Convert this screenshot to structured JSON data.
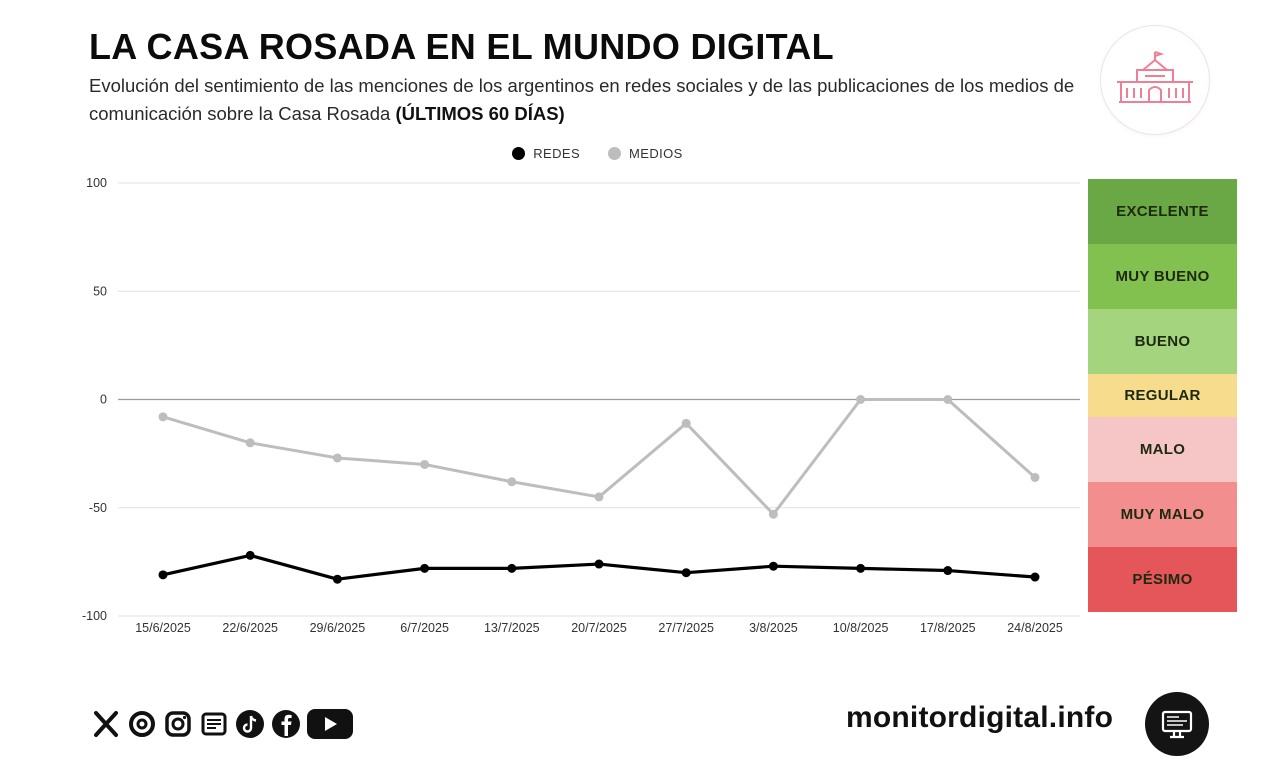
{
  "header": {
    "title": "LA CASA ROSADA EN EL MUNDO DIGITAL",
    "subtitle": "Evolución del sentimiento de las menciones de los argentinos en redes sociales y de las publicaciones de los medios de comunicación sobre la Casa Rosada",
    "subtitle_bold": "(ÚLTIMOS 60 DÍAS)"
  },
  "logo": {
    "icon": "casa-rosada-building-icon",
    "color": "#ef7f95"
  },
  "chart_data": {
    "type": "line",
    "title": "",
    "xlabel": "",
    "ylabel": "",
    "x": [
      "15/6/2025",
      "22/6/2025",
      "29/6/2025",
      "6/7/2025",
      "13/7/2025",
      "20/7/2025",
      "27/7/2025",
      "3/8/2025",
      "10/8/2025",
      "17/8/2025",
      "24/8/2025"
    ],
    "series": [
      {
        "name": "REDES",
        "color": "#000000",
        "values": [
          -81,
          -72,
          -83,
          -78,
          -78,
          -76,
          -80,
          -77,
          -78,
          -79,
          -82
        ]
      },
      {
        "name": "MEDIOS",
        "color": "#bdbdbd",
        "values": [
          -8,
          -20,
          -27,
          -30,
          -38,
          -45,
          -11,
          -53,
          0,
          0,
          -36
        ]
      }
    ],
    "yticks": [
      100,
      50,
      0,
      -50,
      -100
    ],
    "ylim": [
      -100,
      100
    ],
    "grid": true,
    "legend_position": "top-center"
  },
  "scale": {
    "bands": [
      {
        "label": "EXCELENTE",
        "color": "#6aa845",
        "from": 70,
        "to": 100
      },
      {
        "label": "MUY BUENO",
        "color": "#82c04f",
        "from": 40,
        "to": 70
      },
      {
        "label": "BUENO",
        "color": "#a5d47f",
        "from": 10,
        "to": 40
      },
      {
        "label": "REGULAR",
        "color": "#f6dc8c",
        "from": -10,
        "to": 10
      },
      {
        "label": "MALO",
        "color": "#f6c5c6",
        "from": -40,
        "to": -10
      },
      {
        "label": "MUY MALO",
        "color": "#f28e8e",
        "from": -70,
        "to": -40
      },
      {
        "label": "PÉSIMO",
        "color": "#e5565b",
        "from": -100,
        "to": -70
      }
    ]
  },
  "footer": {
    "social_icons": [
      "x-icon",
      "threads-icon",
      "instagram-icon",
      "newspaper-icon",
      "tiktok-icon",
      "facebook-icon",
      "youtube-icon"
    ],
    "site": "monitordigital.info",
    "badge_icon": "monitor-icon"
  }
}
